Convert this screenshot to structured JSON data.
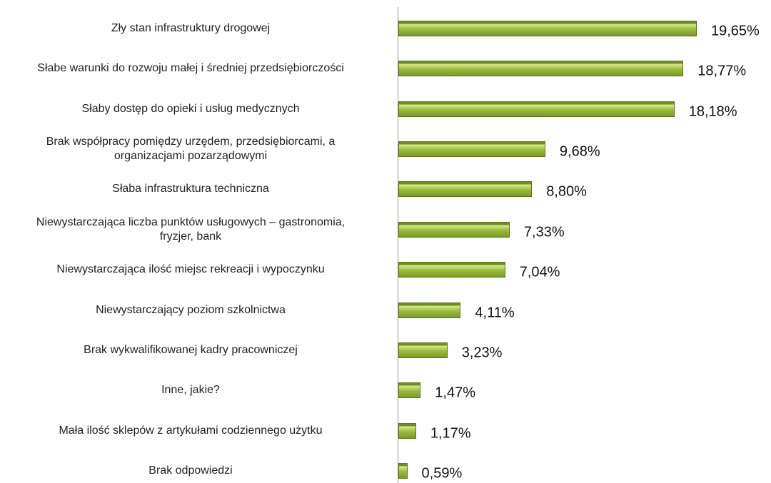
{
  "chart_data": {
    "type": "barh",
    "categories": [
      "Zły stan infrastruktury drogowej",
      "Słabe warunki do rozwoju małej i średniej przedsiębiorczości",
      "Słaby dostęp do opieki i usług medycznych",
      "Brak współpracy pomiędzy urzędem, przedsiębiorcami, a\norganizacjami pozarządowymi",
      "Słaba infrastruktura techniczna",
      "Niewystarczająca liczba punktów usługowych – gastronomia,\nfryzjer, bank",
      "Niewystarczająca ilość miejsc rekreacji i wypoczynku",
      "Niewystarczający poziom szkolnictwa",
      "Brak wykwalifikowanej kadry pracowniczej",
      "Inne, jakie?",
      "Mała ilość sklepów z artykułami codziennego użytku",
      "Brak odpowiedzi"
    ],
    "values": [
      19.65,
      18.77,
      18.18,
      9.68,
      8.8,
      7.33,
      7.04,
      4.11,
      3.23,
      1.47,
      1.17,
      0.59
    ],
    "value_labels": [
      "19,65%",
      "18,77%",
      "18,18%",
      "9,68%",
      "8,80%",
      "7,33%",
      "7,04%",
      "4,11%",
      "3,23%",
      "1,47%",
      "1,17%",
      "0,59%"
    ],
    "color": "#9bbb3c"
  }
}
